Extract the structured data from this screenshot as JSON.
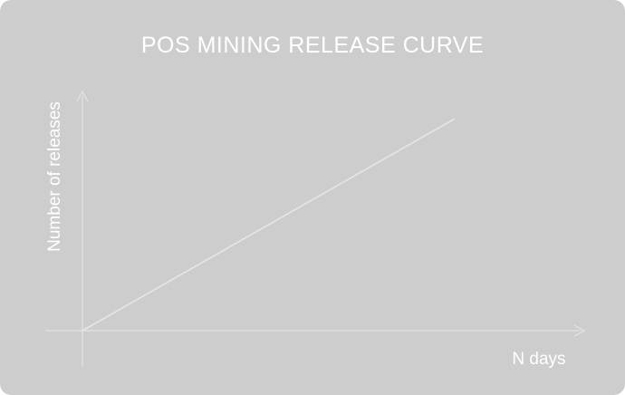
{
  "colors": {
    "background": "#cdcdcd",
    "axis": "#e2e2e2",
    "series": "#e6e6e6",
    "text": "#ffffff"
  },
  "chart_data": {
    "type": "line",
    "title": "POS MINING RELEASE CURVE",
    "xlabel": "N days",
    "ylabel": "Number of releases",
    "grid": false,
    "legend": "none",
    "axis_ticks": "none",
    "series": [
      {
        "trend": "linear-increasing",
        "x": [
          0,
          1
        ],
        "y": [
          0,
          1
        ]
      }
    ],
    "xlim": [
      0,
      1.35
    ],
    "ylim": [
      0,
      1.13
    ]
  }
}
